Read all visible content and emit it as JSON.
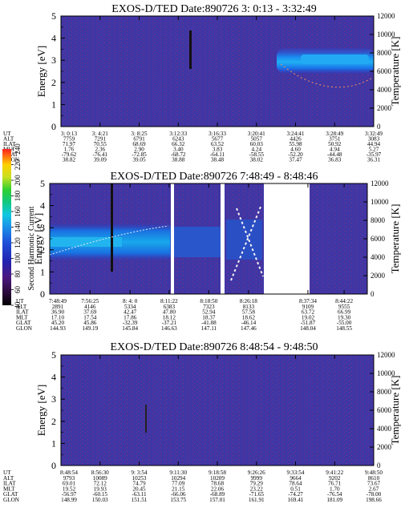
{
  "chart_data": [
    {
      "type": "heatmap",
      "title": "EXOS-D/TED   Date:890726  3: 0:13 - 3:32:49",
      "ylabel": "Energy [eV]",
      "y2label": "Temperature [K]",
      "ylim": [
        0,
        5
      ],
      "y2lim": [
        0,
        12000
      ],
      "yticks": [
        0,
        1,
        2,
        3,
        4,
        5
      ],
      "y2ticks": [
        0,
        2000,
        4000,
        6000,
        8000,
        10000,
        12000
      ],
      "ephemeris_labels": [
        "UT",
        "ALT",
        "ILAT",
        "MLT",
        "GLAT",
        "GLON"
      ],
      "columns": [
        [
          "3: 0:13",
          "7759",
          "71.97",
          "1.76",
          "-79.62",
          "38.82"
        ],
        [
          "3: 4:21",
          "7291",
          "70.55",
          "2.36",
          "-76.41",
          "39.09"
        ],
        [
          "3: 8:25",
          "6791",
          "68.69",
          "2.90",
          "-72.85",
          "39.05"
        ],
        [
          "3:12:33",
          "6243",
          "66.32",
          "3.40",
          "-68.72",
          "38.88"
        ],
        [
          "3:16:33",
          "5677",
          "63.52",
          "3.83",
          "-64.11",
          "38.48"
        ],
        [
          "3:20:41",
          "5057",
          "60.03",
          "4.24",
          "-58.55",
          "38.02"
        ],
        [
          "3:24:41",
          "4426",
          "55.98",
          "4.60",
          "-52.20",
          "37.47"
        ],
        [
          "3:28:49",
          "3751",
          "50.92",
          "4.94",
          "-44.48",
          "36.83"
        ],
        [
          "3:32:49",
          "3083",
          "44.94",
          "5.27",
          "-35.97",
          "36.31"
        ]
      ]
    },
    {
      "type": "heatmap",
      "title": "EXOS-D/TED   Date:890726  7:48:49 - 8:48:46",
      "ylabel": "Energy [eV]",
      "y2label": "Temperature [K]",
      "colorbar_label": "Second Harmonic Current",
      "colorbar_ticks": [
        40,
        60,
        80,
        100,
        120,
        140,
        160,
        180,
        200,
        220,
        240
      ],
      "ylim": [
        0,
        5
      ],
      "y2lim": [
        0,
        12000
      ],
      "yticks": [
        0,
        1,
        2,
        3,
        4,
        5
      ],
      "y2ticks": [
        0,
        2000,
        4000,
        6000,
        8000,
        10000,
        12000
      ],
      "ephemeris_labels": [
        "UT",
        "ALT",
        "ILAT",
        "MLT",
        "GLAT",
        "GLON"
      ],
      "columns": [
        [
          "7:48:49",
          "2891",
          "36.90",
          "17.10",
          "45.20",
          "144.93"
        ],
        [
          "7:56:25",
          "4146",
          "37.69",
          "17.54",
          "45.86",
          "149.19"
        ],
        [
          "8: 4: 0",
          "5334",
          "42.47",
          "17.86",
          "-32.39",
          "145.84"
        ],
        [
          "8:11:22",
          "6383",
          "47.80",
          "18.12",
          "-37.21",
          "146.63"
        ],
        [
          "8:18:50",
          "7323",
          "52.94",
          "18.37",
          "-41.88",
          "147.11"
        ],
        [
          "8:26:18",
          "8133",
          "57.58",
          "18.62",
          "-46.14",
          "147.46"
        ],
        [
          "8:37:34",
          "9109",
          "63.72",
          "19.02",
          "-51.87",
          "148.04"
        ],
        [
          "8:44:22",
          "9555",
          "66.99",
          "19.30",
          "-55.00",
          "148.55"
        ]
      ]
    },
    {
      "type": "heatmap",
      "title": "EXOS-D/TED   Date:890726  8:48:54 - 9:48:50",
      "ylabel": "Energy [eV]",
      "y2label": "Temperature [K]",
      "ylim": [
        0,
        5
      ],
      "y2lim": [
        0,
        12000
      ],
      "yticks": [
        0,
        1,
        2,
        3,
        4,
        5
      ],
      "y2ticks": [
        0,
        2000,
        4000,
        6000,
        8000,
        10000,
        12000
      ],
      "ephemeris_labels": [
        "UT",
        "ALT",
        "ILAT",
        "MLT",
        "GLAT",
        "GLON"
      ],
      "columns": [
        [
          "8:48:54",
          "9793",
          "69.01",
          "19.52",
          "-56.97",
          "148.99"
        ],
        [
          "8:56:30",
          "10089",
          "72.12",
          "19.93",
          "-60.15",
          "150.03"
        ],
        [
          "9: 3:54",
          "10253",
          "74.79",
          "20.45",
          "-63.11",
          "151.51"
        ],
        [
          "9:11:30",
          "10294",
          "77.09",
          "21.15",
          "-66.06",
          "153.75"
        ],
        [
          "9:18:58",
          "10209",
          "78.68",
          "22.06",
          "-68.89",
          "157.01"
        ],
        [
          "9:26:26",
          "9999",
          "79.29",
          "23.22",
          "-71.65",
          "161.91"
        ],
        [
          "9:33:54",
          "9664",
          "78.64",
          "0.51",
          "-74.27",
          "169.41"
        ],
        [
          "9:41:22",
          "9202",
          "76.71",
          "1.70",
          "-76.54",
          "181.09"
        ],
        [
          "9:48:50",
          "8610",
          "73.67",
          "2.67",
          "-78.00",
          "198.66"
        ]
      ]
    }
  ]
}
